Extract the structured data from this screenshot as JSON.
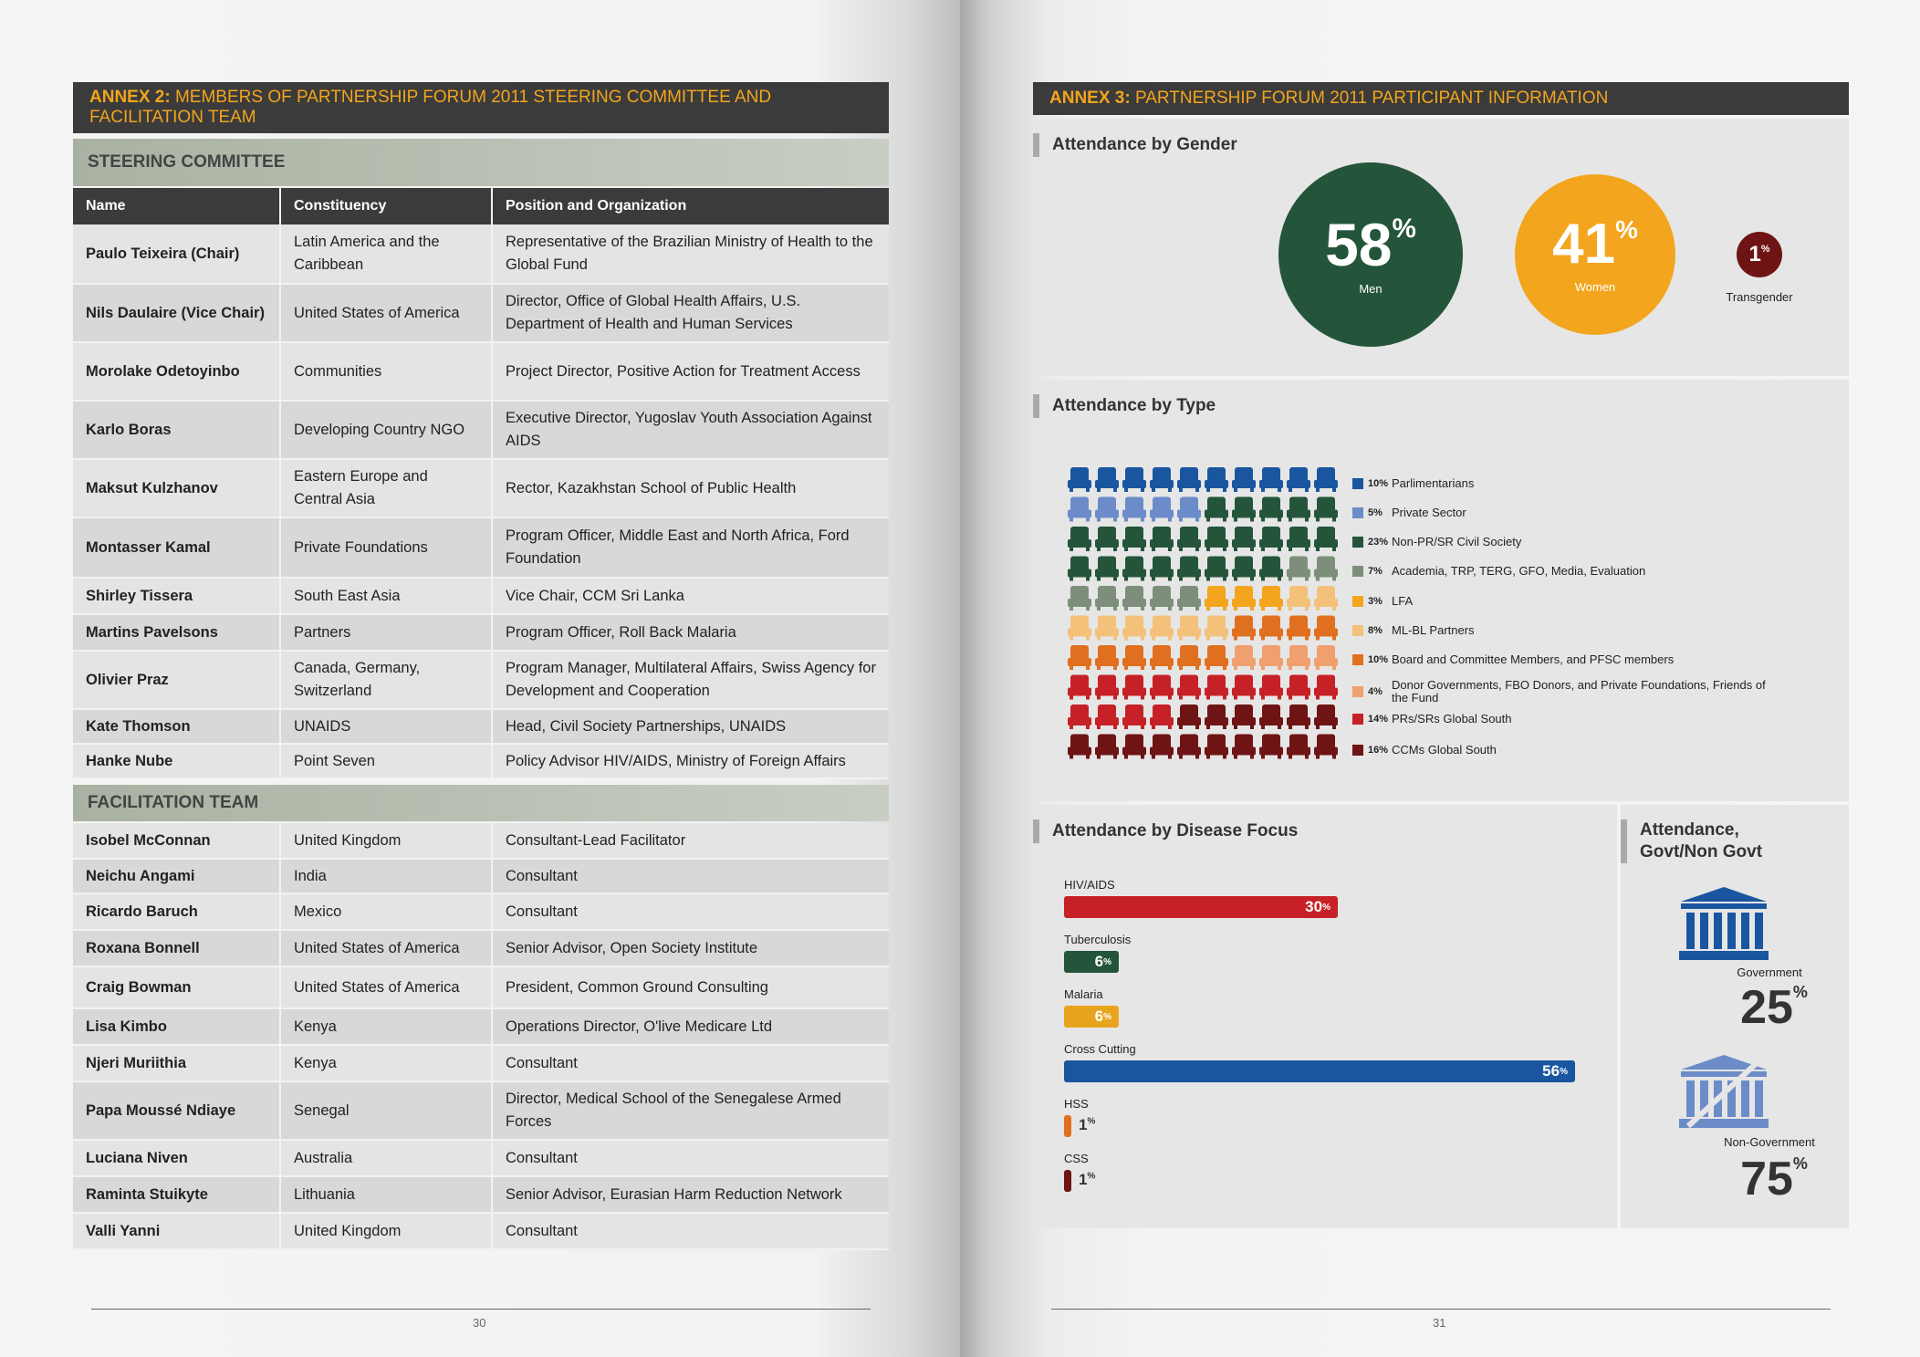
{
  "left": {
    "annex_label": "ANNEX 2:",
    "annex_title": "MEMBERS OF PARTNERSHIP FORUM 2011 STEERING COMMITTEE AND FACILITATION TEAM",
    "steering_title": "STEERING COMMITTEE",
    "headers": [
      "Name",
      "Constituency",
      "Position and Organization"
    ],
    "steering": [
      {
        "name": "Paulo Teixeira (Chair)",
        "constituency": "Latin America and the Caribbean",
        "position": "Representative of the Brazilian Ministry of Health to the Global Fund"
      },
      {
        "name": "Nils Daulaire (Vice Chair)",
        "constituency": "United States of America",
        "position": "Director, Office of Global Health Affairs, U.S. Department of Health and Human Services"
      },
      {
        "name": "Morolake Odetoyinbo",
        "constituency": "Communities",
        "position": "Project Director, Positive Action for Treatment Access"
      },
      {
        "name": "Karlo Boras",
        "constituency": "Developing Country NGO",
        "position": "Executive Director, Yugoslav Youth Association Against AIDS"
      },
      {
        "name": "Maksut Kulzhanov",
        "constituency": "Eastern Europe and Central Asia",
        "position": "Rector, Kazakhstan School of Public Health"
      },
      {
        "name": "Montasser Kamal",
        "constituency": "Private Foundations",
        "position": "Program Officer, Middle East and North Africa, Ford Foundation"
      },
      {
        "name": "Shirley Tissera",
        "constituency": "South East Asia",
        "position": "Vice Chair, CCM Sri Lanka"
      },
      {
        "name": "Martins Pavelsons",
        "constituency": "Partners",
        "position": "Program Officer, Roll Back Malaria"
      },
      {
        "name": "Olivier Praz",
        "constituency": "Canada, Germany, Switzerland",
        "position": "Program Manager, Multilateral Affairs, Swiss Agency for Development and Cooperation"
      },
      {
        "name": "Kate Thomson",
        "constituency": "UNAIDS",
        "position": "Head, Civil Society Partnerships, UNAIDS"
      },
      {
        "name": "Hanke Nube",
        "constituency": "Point Seven",
        "position": "Policy Advisor HIV/AIDS, Ministry of Foreign Affairs"
      }
    ],
    "facilitation_title": "FACILITATION TEAM",
    "facilitation": [
      {
        "name": "Isobel McConnan",
        "constituency": "United Kingdom",
        "position": "Consultant-Lead Facilitator"
      },
      {
        "name": "Neichu Angami",
        "constituency": "India",
        "position": "Consultant"
      },
      {
        "name": "Ricardo Baruch",
        "constituency": "Mexico",
        "position": "Consultant"
      },
      {
        "name": "Roxana Bonnell",
        "constituency": "United States of America",
        "position": "Senior Advisor, Open Society Institute"
      },
      {
        "name": "Craig Bowman",
        "constituency": "United States of America",
        "position": "President, Common Ground Consulting"
      },
      {
        "name": "Lisa Kimbo",
        "constituency": "Kenya",
        "position": "Operations Director, O'live Medicare Ltd"
      },
      {
        "name": "Njeri Muriithia",
        "constituency": "Kenya",
        "position": "Consultant"
      },
      {
        "name": "Papa Moussé Ndiaye",
        "constituency": "Senegal",
        "position": "Director, Medical School of the Senegalese Armed Forces"
      },
      {
        "name": "Luciana Niven",
        "constituency": "Australia",
        "position": "Consultant"
      },
      {
        "name": "Raminta Stuikyte",
        "constituency": "Lithuania",
        "position": "Senior Advisor, Eurasian Harm Reduction Network"
      },
      {
        "name": "Valli Yanni",
        "constituency": "United Kingdom",
        "position": "Consultant"
      }
    ],
    "page_number": "30"
  },
  "right": {
    "annex_label": "ANNEX 3:",
    "annex_title": "PARTNERSHIP FORUM 2011 PARTICIPANT INFORMATION",
    "gender": {
      "title": "Attendance by Gender",
      "items": [
        {
          "value": "58",
          "unit": "%",
          "label": "Men",
          "color": "#24553a"
        },
        {
          "value": "41",
          "unit": "%",
          "label": "Women",
          "color": "#f2a51d"
        },
        {
          "value": "1",
          "unit": "%",
          "label": "Transgender",
          "color": "#6e1414"
        }
      ]
    },
    "type": {
      "title": "Attendance by Type",
      "legend": [
        {
          "pct": "10%",
          "label": "Parlimentarians",
          "color": "#1a56a0",
          "value": 10
        },
        {
          "pct": "5%",
          "label": "Private Sector",
          "color": "#6b8cc8",
          "value": 5
        },
        {
          "pct": "23%",
          "label": "Non-PR/SR Civil Society",
          "color": "#24553a",
          "value": 23
        },
        {
          "pct": "7%",
          "label": "Academia, TRP, TERG, GFO, Media, Evaluation",
          "color": "#7d8f7a",
          "value": 7
        },
        {
          "pct": "3%",
          "label": "LFA",
          "color": "#f2a51d",
          "value": 3
        },
        {
          "pct": "8%",
          "label": "ML-BL Partners",
          "color": "#f3c17a",
          "value": 8
        },
        {
          "pct": "10%",
          "label": "Board and Committee Members, and PFSC members",
          "color": "#e0701f",
          "value": 10
        },
        {
          "pct": "4%",
          "label": "Donor Governments, FBO Donors, and Private Foundations, Friends of the Fund",
          "color": "#f0a06e",
          "value": 4
        },
        {
          "pct": "14%",
          "label": "PRs/SRs Global South",
          "color": "#c62127",
          "value": 14
        },
        {
          "pct": "16%",
          "label": "CCMs Global South",
          "color": "#6e1414",
          "value": 16
        }
      ]
    },
    "disease": {
      "title": "Attendance by Disease Focus",
      "items": [
        {
          "label": "HIV/AIDS",
          "value": 30,
          "display": "30",
          "color": "#c62127"
        },
        {
          "label": "Tuberculosis",
          "value": 6,
          "display": "6",
          "color": "#24553a"
        },
        {
          "label": "Malaria",
          "value": 6,
          "display": "6",
          "color": "#e8a41d"
        },
        {
          "label": "Cross Cutting",
          "value": 56,
          "display": "56",
          "color": "#1a56a0"
        },
        {
          "label": "HSS",
          "value": 1,
          "display": "1",
          "color": "#e0701f"
        },
        {
          "label": "CSS",
          "value": 1,
          "display": "1",
          "color": "#6e1414"
        }
      ],
      "unit": "%"
    },
    "govt": {
      "title_line1": "Attendance,",
      "title_line2": "Govt/Non Govt",
      "government_label": "Government",
      "government_value": "25",
      "nongov_label": "Non-Government",
      "nongov_value": "75",
      "unit": "%",
      "gov_color": "#1a56a0",
      "nongov_color": "#6b8cc8"
    },
    "page_number": "31"
  }
}
